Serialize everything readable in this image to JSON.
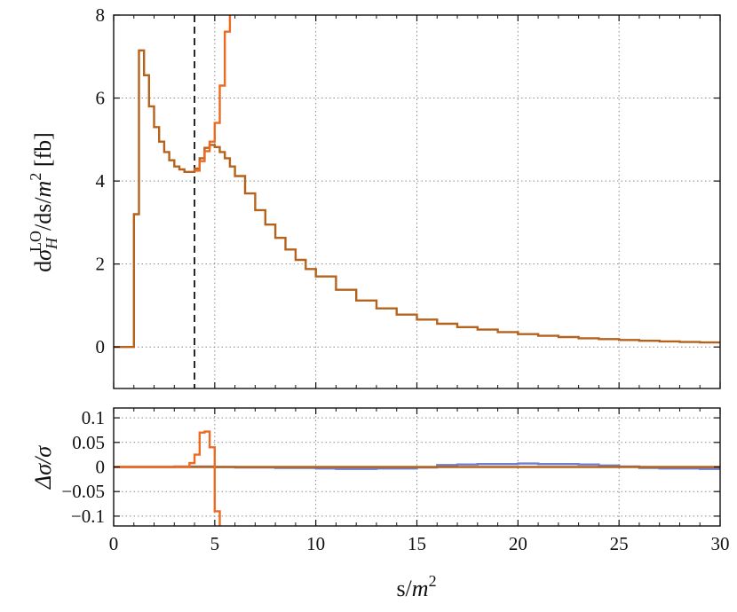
{
  "chart_data": [
    {
      "type": "line",
      "panel": "main",
      "ylabel_parts": {
        "d": "d",
        "sigma": "σ",
        "sub": "H",
        "sup": "LO",
        "rest": "/ds/",
        "m": "m",
        "m_sup": "2",
        "unit": " [fb]"
      },
      "xlim": [
        0,
        30
      ],
      "ylim": [
        -1,
        8
      ],
      "x_ticks": [
        0,
        5,
        10,
        15,
        20,
        25,
        30
      ],
      "y_ticks": [
        0,
        2,
        4,
        6,
        8
      ],
      "y_tick_labels": [
        "0",
        "2",
        "4",
        "6",
        "8"
      ],
      "grid": true,
      "threshold_line_x": 4.0,
      "series": [
        {
          "color": "#b5631c",
          "x": [
            0.0,
            1.0,
            1.25,
            1.5,
            1.75,
            2.0,
            2.25,
            2.5,
            2.75,
            3.0,
            3.25,
            3.5,
            3.75,
            4.0,
            4.25,
            4.5,
            4.75,
            5.0,
            5.25,
            5.5,
            5.75,
            6.0,
            6.5,
            7.0,
            7.5,
            8.0,
            8.5,
            9.0,
            9.5,
            10.0,
            11.0,
            12.0,
            13.0,
            14.0,
            15.0,
            16.0,
            17.0,
            18.0,
            19.0,
            20.0,
            21.0,
            22.0,
            23.0,
            24.0,
            25.0,
            26.0,
            27.0,
            28.0,
            29.0,
            30.0
          ],
          "y": [
            0.0,
            3.2,
            7.15,
            6.55,
            5.8,
            5.3,
            4.95,
            4.7,
            4.5,
            4.35,
            4.28,
            4.22,
            4.22,
            4.3,
            4.55,
            4.8,
            4.87,
            4.82,
            4.7,
            4.55,
            4.35,
            4.12,
            3.7,
            3.3,
            2.95,
            2.63,
            2.35,
            2.1,
            1.88,
            1.7,
            1.38,
            1.12,
            0.93,
            0.78,
            0.66,
            0.56,
            0.48,
            0.42,
            0.36,
            0.31,
            0.27,
            0.24,
            0.21,
            0.19,
            0.17,
            0.15,
            0.135,
            0.12,
            0.11,
            0.1
          ]
        },
        {
          "color": "#ee6a1f",
          "x": [
            4.0,
            4.25,
            4.5,
            4.75,
            5.0,
            5.25,
            5.5,
            5.75
          ],
          "y": [
            4.25,
            4.48,
            4.72,
            4.95,
            5.4,
            6.3,
            7.6,
            8.5
          ]
        }
      ]
    },
    {
      "type": "line",
      "panel": "ratio",
      "ylabel": "Δσ/σ",
      "xlabel_parts": {
        "s": "s/",
        "m": "m",
        "sup": "2"
      },
      "xlim": [
        0,
        30
      ],
      "ylim": [
        -0.12,
        0.12
      ],
      "x_ticks": [
        0,
        5,
        10,
        15,
        20,
        25,
        30
      ],
      "x_tick_labels": [
        "0",
        "5",
        "10",
        "15",
        "20",
        "25",
        "30"
      ],
      "y_ticks": [
        0.1,
        0.05,
        0,
        -0.05,
        -0.1
      ],
      "y_tick_labels": [
        "0.1",
        "0.05",
        "0",
        "−0.05",
        "−0.1"
      ],
      "grid": true,
      "series": [
        {
          "color": "#6d7fcf",
          "x": [
            0,
            2,
            3,
            5,
            6,
            8,
            10,
            11,
            12,
            13,
            15,
            16,
            17,
            18,
            19,
            20,
            21,
            22,
            23,
            24,
            25,
            26,
            27,
            28,
            29,
            30
          ],
          "y": [
            0.0,
            0.0,
            0.001,
            0.0,
            -0.001,
            -0.002,
            -0.003,
            -0.004,
            -0.004,
            -0.003,
            -0.001,
            0.004,
            0.005,
            0.006,
            0.006,
            0.007,
            0.006,
            0.006,
            0.005,
            0.003,
            0.001,
            -0.002,
            -0.003,
            -0.003,
            -0.004,
            -0.003
          ]
        },
        {
          "color": "#b5631c",
          "x": [
            0,
            30
          ],
          "y": [
            0.0,
            0.0
          ]
        },
        {
          "color": "#ee6a1f",
          "x": [
            0.0,
            3.5,
            3.75,
            4.0,
            4.25,
            4.5,
            4.75,
            5.0,
            5.25
          ],
          "y": [
            0.0,
            0.0,
            0.008,
            0.025,
            0.07,
            0.072,
            0.04,
            -0.09,
            -0.2
          ]
        }
      ]
    }
  ]
}
